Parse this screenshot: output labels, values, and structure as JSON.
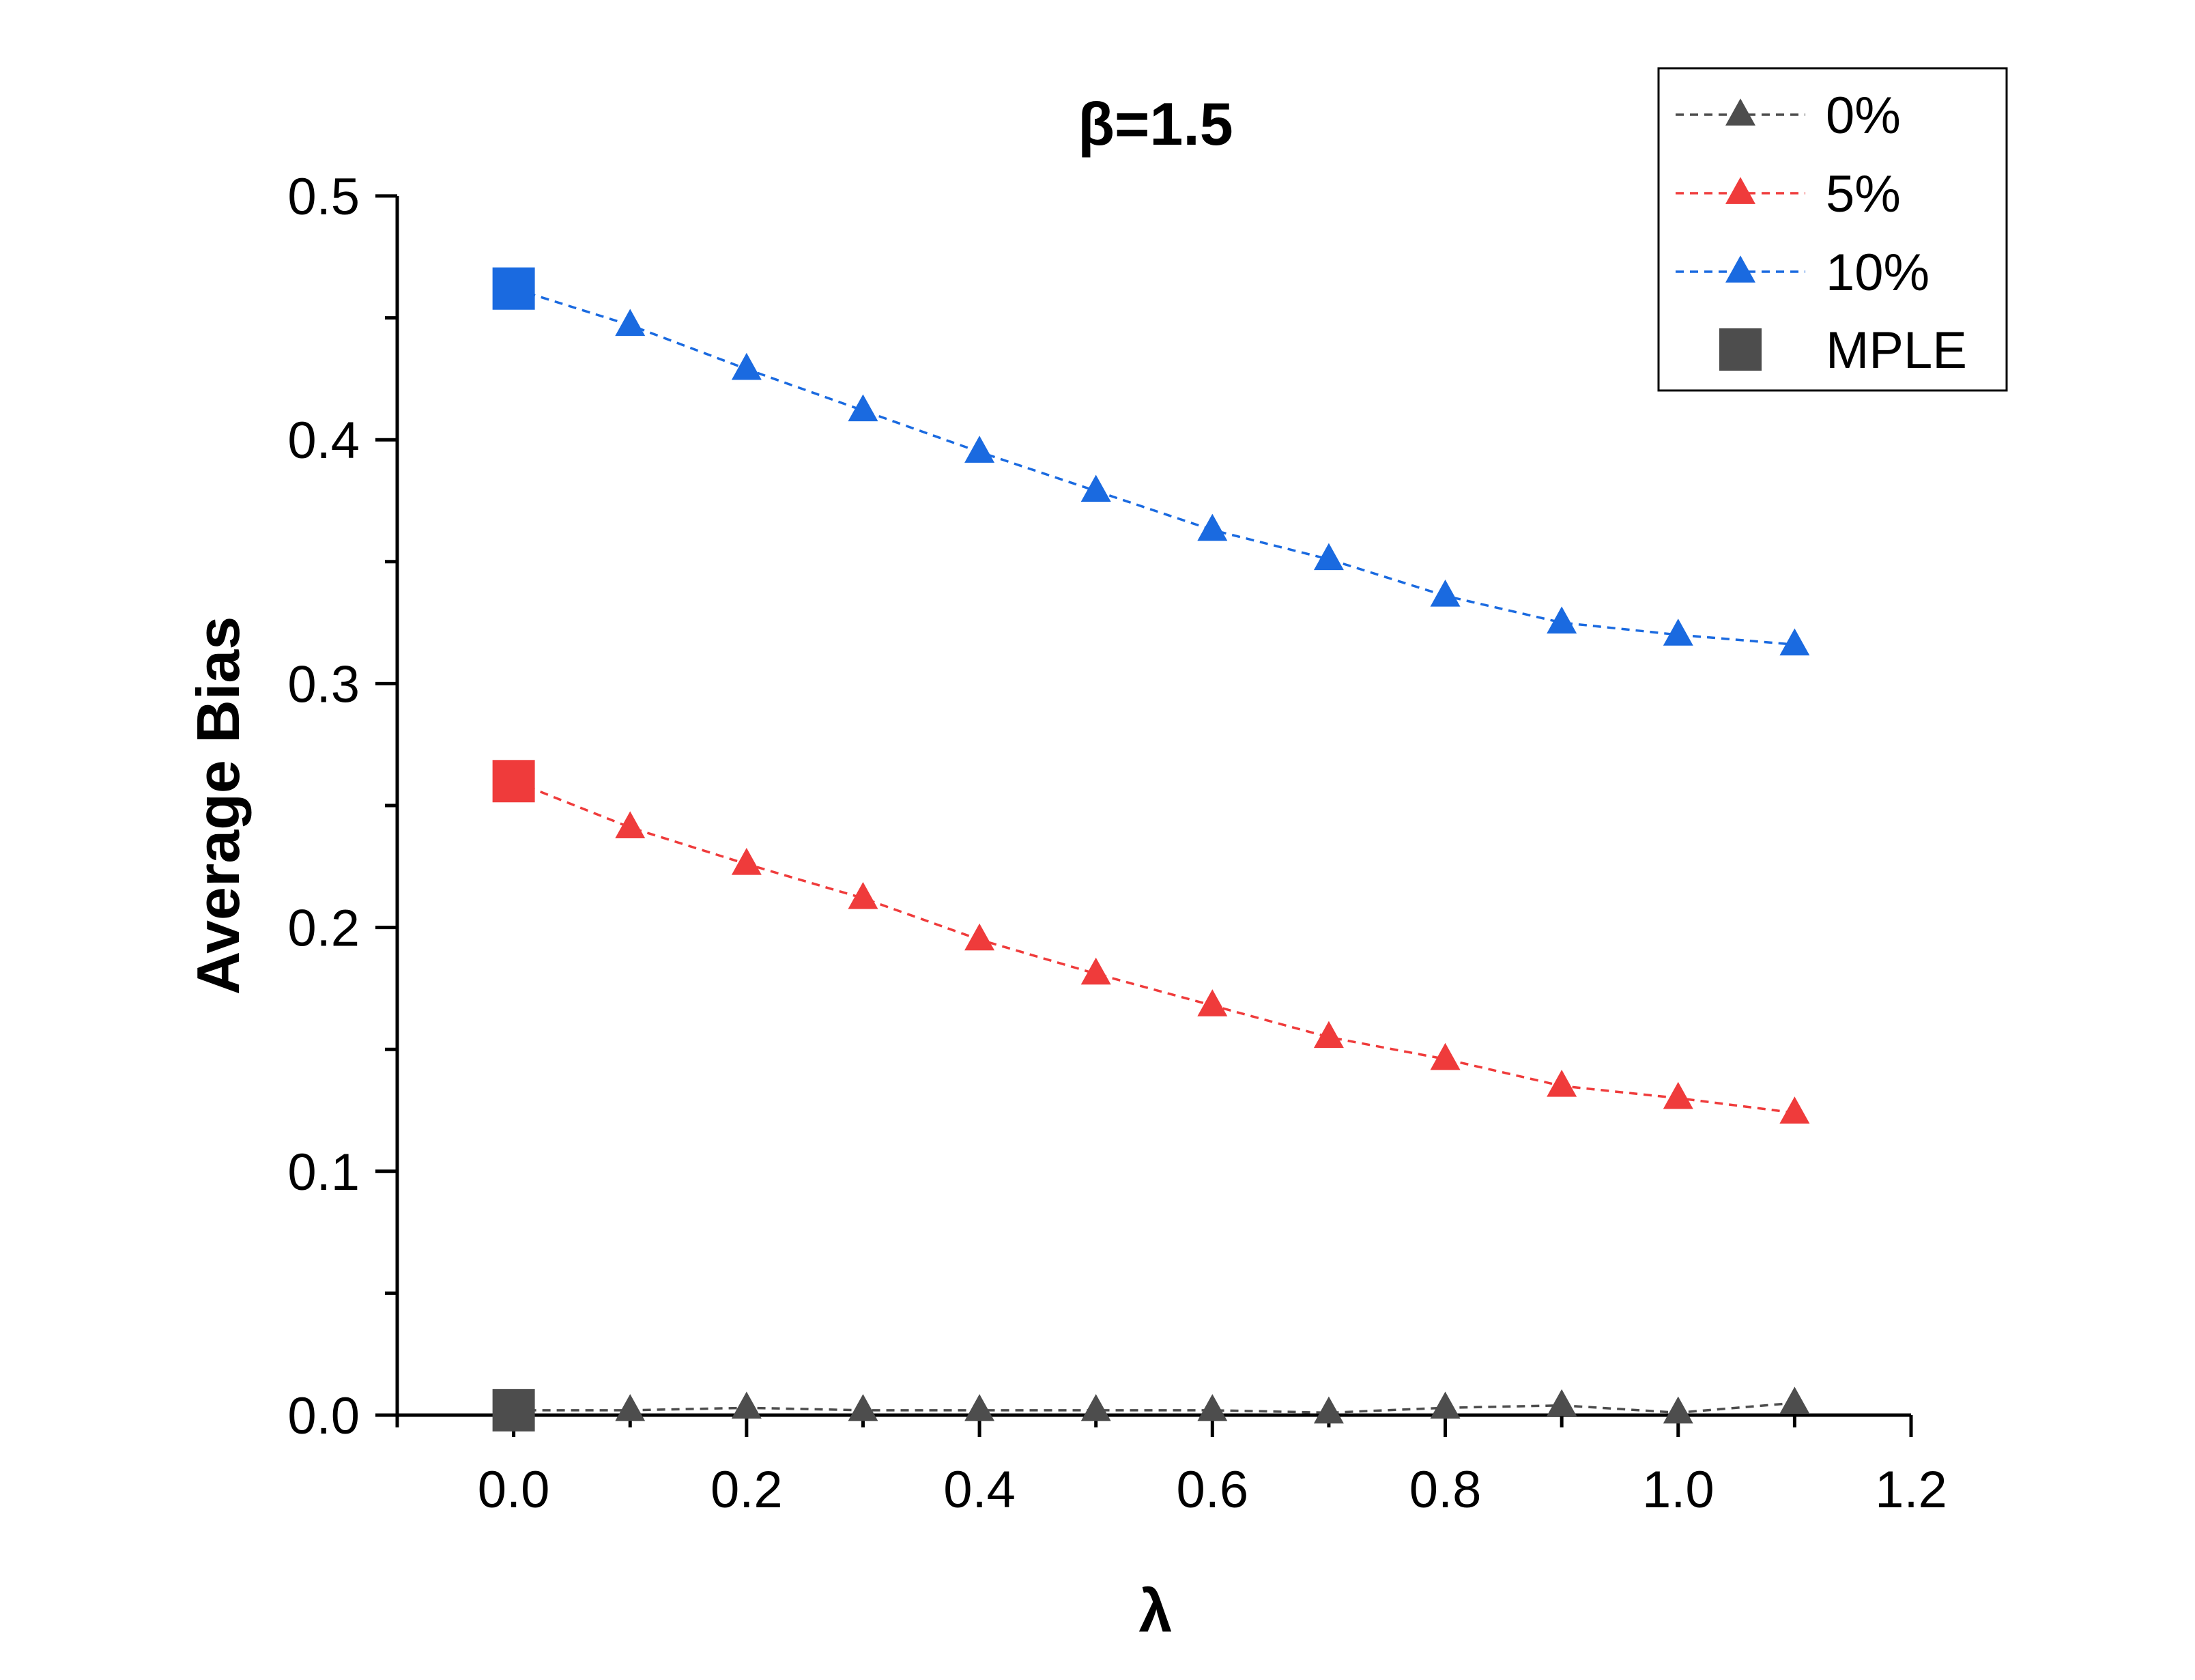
{
  "chart_data": {
    "type": "line",
    "title": "β=1.5",
    "xlabel": "λ",
    "ylabel": "Average Bias",
    "xlim": [
      -0.1,
      1.2
    ],
    "ylim": [
      0,
      0.5
    ],
    "xticks": [
      0.0,
      0.2,
      0.4,
      0.6,
      0.8,
      1.0,
      1.2
    ],
    "xtick_labels": [
      "0.0",
      "0.2",
      "0.4",
      "0.6",
      "0.8",
      "1.0",
      "1.2"
    ],
    "yticks": [
      0.0,
      0.1,
      0.2,
      0.3,
      0.4,
      0.5
    ],
    "ytick_labels": [
      "0.0",
      "0.1",
      "0.2",
      "0.3",
      "0.4",
      "0.5"
    ],
    "grid": false,
    "legend_position": "top-right",
    "x": [
      0.0,
      0.1,
      0.2,
      0.3,
      0.4,
      0.5,
      0.6,
      0.7,
      0.8,
      0.9,
      1.0,
      1.1
    ],
    "series": [
      {
        "name": "0%",
        "color": "#4d4d4d",
        "marker": "triangle",
        "line": "dashed",
        "values": [
          0.002,
          0.002,
          0.003,
          0.002,
          0.002,
          0.002,
          0.002,
          0.001,
          0.003,
          0.004,
          0.001,
          0.005
        ]
      },
      {
        "name": "5%",
        "color": "#ef3b3b",
        "marker": "triangle",
        "line": "dashed",
        "values": [
          0.26,
          0.241,
          0.226,
          0.212,
          0.195,
          0.181,
          0.168,
          0.155,
          0.146,
          0.135,
          0.13,
          0.124
        ]
      },
      {
        "name": "10%",
        "color": "#1a6ae0",
        "marker": "triangle",
        "line": "dashed",
        "values": [
          0.462,
          0.447,
          0.429,
          0.412,
          0.395,
          0.379,
          0.363,
          0.351,
          0.336,
          0.325,
          0.32,
          0.316
        ]
      }
    ],
    "mple": {
      "name": "MPLE",
      "marker": "square",
      "legend_color": "#4d4d4d",
      "points": [
        {
          "x": 0.0,
          "y": 0.002,
          "color": "#4d4d4d"
        },
        {
          "x": 0.0,
          "y": 0.26,
          "color": "#ef3b3b"
        },
        {
          "x": 0.0,
          "y": 0.462,
          "color": "#1a6ae0"
        }
      ]
    }
  }
}
